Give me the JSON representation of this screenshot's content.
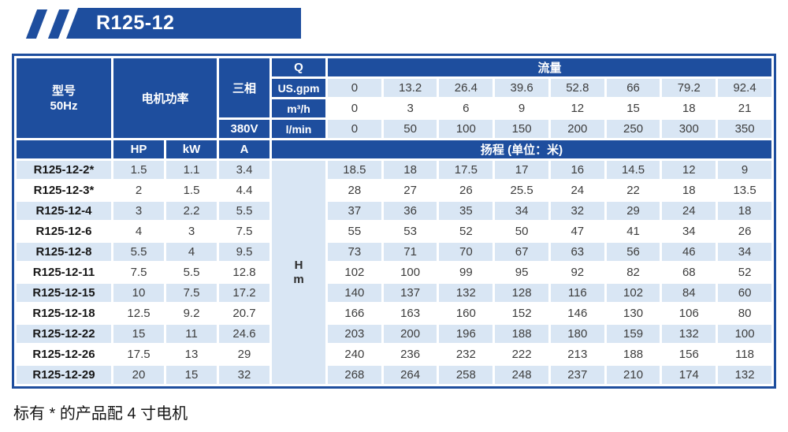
{
  "badge": {
    "label": "R125-12"
  },
  "colors": {
    "primary_blue": "#1e4e9e",
    "row_highlight": "#d9e6f4"
  },
  "table": {
    "model_header": {
      "line1": "型号",
      "line2": "50Hz"
    },
    "motor_power_header": "电机功率",
    "three_phase_header": "三相",
    "voltage": "380V",
    "q_header": "Q",
    "flow_header": "流量",
    "hp_header": "HP",
    "kw_header": "kW",
    "amp_header": "A",
    "head_header": "扬程 (单位：米)",
    "head_unit": {
      "line1": "H",
      "line2": "m"
    },
    "flow_rows": [
      {
        "unit": "US.gpm",
        "values": [
          "0",
          "13.2",
          "26.4",
          "39.6",
          "52.8",
          "66",
          "79.2",
          "92.4"
        ]
      },
      {
        "unit": "m³/h",
        "values": [
          "0",
          "3",
          "6",
          "9",
          "12",
          "15",
          "18",
          "21"
        ]
      },
      {
        "unit": "l/min",
        "values": [
          "0",
          "50",
          "100",
          "150",
          "200",
          "250",
          "300",
          "350"
        ]
      }
    ],
    "rows": [
      {
        "model": "R125-12-2*",
        "hp": "1.5",
        "kw": "1.1",
        "amp": "3.4",
        "head": [
          "18.5",
          "18",
          "17.5",
          "17",
          "16",
          "14.5",
          "12",
          "9"
        ]
      },
      {
        "model": "R125-12-3*",
        "hp": "2",
        "kw": "1.5",
        "amp": "4.4",
        "head": [
          "28",
          "27",
          "26",
          "25.5",
          "24",
          "22",
          "18",
          "13.5"
        ]
      },
      {
        "model": "R125-12-4",
        "hp": "3",
        "kw": "2.2",
        "amp": "5.5",
        "head": [
          "37",
          "36",
          "35",
          "34",
          "32",
          "29",
          "24",
          "18"
        ]
      },
      {
        "model": "R125-12-6",
        "hp": "4",
        "kw": "3",
        "amp": "7.5",
        "head": [
          "55",
          "53",
          "52",
          "50",
          "47",
          "41",
          "34",
          "26"
        ]
      },
      {
        "model": "R125-12-8",
        "hp": "5.5",
        "kw": "4",
        "amp": "9.5",
        "head": [
          "73",
          "71",
          "70",
          "67",
          "63",
          "56",
          "46",
          "34"
        ]
      },
      {
        "model": "R125-12-11",
        "hp": "7.5",
        "kw": "5.5",
        "amp": "12.8",
        "head": [
          "102",
          "100",
          "99",
          "95",
          "92",
          "82",
          "68",
          "52"
        ]
      },
      {
        "model": "R125-12-15",
        "hp": "10",
        "kw": "7.5",
        "amp": "17.2",
        "head": [
          "140",
          "137",
          "132",
          "128",
          "116",
          "102",
          "84",
          "60"
        ]
      },
      {
        "model": "R125-12-18",
        "hp": "12.5",
        "kw": "9.2",
        "amp": "20.7",
        "head": [
          "166",
          "163",
          "160",
          "152",
          "146",
          "130",
          "106",
          "80"
        ]
      },
      {
        "model": "R125-12-22",
        "hp": "15",
        "kw": "11",
        "amp": "24.6",
        "head": [
          "203",
          "200",
          "196",
          "188",
          "180",
          "159",
          "132",
          "100"
        ]
      },
      {
        "model": "R125-12-26",
        "hp": "17.5",
        "kw": "13",
        "amp": "29",
        "head": [
          "240",
          "236",
          "232",
          "222",
          "213",
          "188",
          "156",
          "118"
        ]
      },
      {
        "model": "R125-12-29",
        "hp": "20",
        "kw": "15",
        "amp": "32",
        "head": [
          "268",
          "264",
          "258",
          "248",
          "237",
          "210",
          "174",
          "132"
        ]
      }
    ]
  },
  "footnote": "标有 * 的产品配 4 寸电机"
}
